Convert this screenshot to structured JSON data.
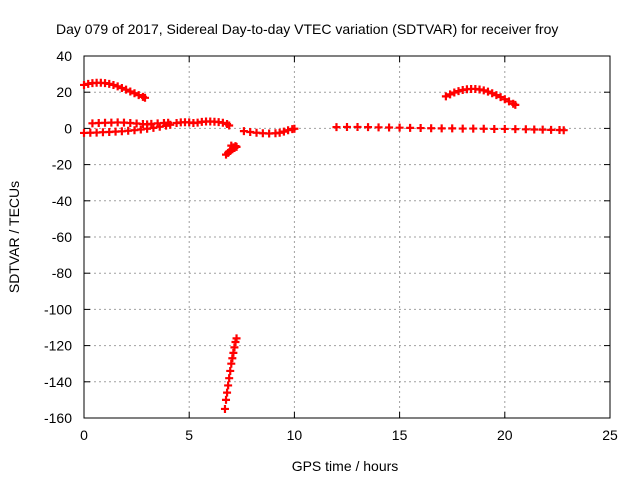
{
  "chart_data": {
    "type": "scatter",
    "title": "Day 079 of 2017, Sidereal Day-to-day VTEC variation (SDTVAR) for receiver froy",
    "xlabel": "GPS time / hours",
    "ylabel": "SDTVAR / TECUs",
    "xlim": [
      0,
      25
    ],
    "ylim": [
      -160,
      40
    ],
    "x_ticks": [
      "0",
      "5",
      "10",
      "15",
      "20",
      "25"
    ],
    "y_ticks": [
      "40",
      "20",
      "0",
      "-20",
      "-40",
      "-60",
      "-80",
      "-100",
      "-120",
      "-140",
      "-160"
    ],
    "grid": true,
    "marker": "plus",
    "series_color": "#ff0000",
    "series": [
      {
        "points": [
          [
            0.0,
            24.0
          ],
          [
            0.2,
            24.6
          ],
          [
            0.4,
            25.0
          ],
          [
            0.6,
            25.2
          ],
          [
            0.8,
            25.2
          ],
          [
            1.0,
            25.0
          ],
          [
            1.2,
            24.6
          ],
          [
            1.4,
            24.0
          ],
          [
            1.6,
            23.2
          ],
          [
            1.8,
            22.3
          ],
          [
            2.0,
            21.4
          ],
          [
            2.2,
            20.4
          ],
          [
            2.4,
            19.4
          ],
          [
            2.6,
            18.4
          ],
          [
            2.8,
            17.4
          ],
          [
            2.9,
            16.9
          ],
          [
            0.0,
            -2.5
          ],
          [
            0.3,
            -2.4
          ],
          [
            0.6,
            -2.3
          ],
          [
            0.9,
            -2.1
          ],
          [
            1.2,
            -2.0
          ],
          [
            1.5,
            -1.8
          ],
          [
            1.8,
            -1.6
          ],
          [
            2.1,
            -1.3
          ],
          [
            2.4,
            -1.0
          ],
          [
            2.7,
            -0.6
          ],
          [
            3.0,
            -0.2
          ],
          [
            3.3,
            0.3
          ],
          [
            3.6,
            0.9
          ],
          [
            3.9,
            1.5
          ],
          [
            4.1,
            2.0
          ],
          [
            0.4,
            2.8
          ],
          [
            0.7,
            3.0
          ],
          [
            1.0,
            3.1
          ],
          [
            1.3,
            3.2
          ],
          [
            1.6,
            3.3
          ],
          [
            1.9,
            3.2
          ],
          [
            2.2,
            3.0
          ],
          [
            2.5,
            2.7
          ],
          [
            2.8,
            2.4
          ],
          [
            3.0,
            2.2
          ],
          [
            3.2,
            2.5
          ],
          [
            3.5,
            2.8
          ],
          [
            3.8,
            3.0
          ],
          [
            4.0,
            3.1
          ],
          [
            4.4,
            3.0
          ],
          [
            4.6,
            3.3
          ],
          [
            4.8,
            3.4
          ],
          [
            5.0,
            3.3
          ],
          [
            5.2,
            3.0
          ],
          [
            5.4,
            3.2
          ],
          [
            5.6,
            3.6
          ],
          [
            5.8,
            3.8
          ],
          [
            6.0,
            3.8
          ],
          [
            6.2,
            3.7
          ],
          [
            6.4,
            3.5
          ],
          [
            6.6,
            3.1
          ],
          [
            6.8,
            2.4
          ],
          [
            6.9,
            1.6
          ],
          [
            6.75,
            -14.5
          ],
          [
            6.85,
            -13.5
          ],
          [
            6.95,
            -12.5
          ],
          [
            7.05,
            -11.5
          ],
          [
            7.15,
            -10.8
          ],
          [
            7.25,
            -10.2
          ],
          [
            7.0,
            -9.5
          ],
          [
            7.1,
            -10.5
          ],
          [
            7.2,
            -9.8
          ],
          [
            6.7,
            -155
          ],
          [
            6.75,
            -150
          ],
          [
            6.8,
            -146
          ],
          [
            6.85,
            -142
          ],
          [
            6.9,
            -138
          ],
          [
            6.95,
            -134
          ],
          [
            7.0,
            -130
          ],
          [
            7.05,
            -127
          ],
          [
            7.1,
            -124
          ],
          [
            7.15,
            -121
          ],
          [
            7.2,
            -118
          ],
          [
            7.25,
            -116
          ],
          [
            7.6,
            -1.5
          ],
          [
            7.9,
            -2.0
          ],
          [
            8.2,
            -2.4
          ],
          [
            8.5,
            -2.7
          ],
          [
            8.8,
            -2.8
          ],
          [
            9.1,
            -2.7
          ],
          [
            9.3,
            -2.4
          ],
          [
            9.5,
            -1.8
          ],
          [
            9.7,
            -1.0
          ],
          [
            9.9,
            -0.4
          ],
          [
            10.0,
            -0.2
          ],
          [
            12.0,
            0.7
          ],
          [
            12.5,
            0.8
          ],
          [
            13.0,
            0.8
          ],
          [
            13.5,
            0.7
          ],
          [
            14.0,
            0.6
          ],
          [
            14.5,
            0.5
          ],
          [
            15.0,
            0.4
          ],
          [
            15.5,
            0.3
          ],
          [
            16.0,
            0.2
          ],
          [
            16.5,
            0.1
          ],
          [
            17.0,
            0.0
          ],
          [
            17.5,
            0.0
          ],
          [
            18.0,
            -0.1
          ],
          [
            18.5,
            -0.1
          ],
          [
            19.0,
            -0.2
          ],
          [
            19.5,
            -0.3
          ],
          [
            20.0,
            -0.3
          ],
          [
            20.5,
            -0.4
          ],
          [
            17.2,
            17.7
          ],
          [
            17.4,
            18.8
          ],
          [
            17.6,
            19.8
          ],
          [
            17.8,
            20.6
          ],
          [
            18.0,
            21.2
          ],
          [
            18.2,
            21.6
          ],
          [
            18.4,
            21.8
          ],
          [
            18.6,
            21.8
          ],
          [
            18.8,
            21.5
          ],
          [
            19.0,
            21.0
          ],
          [
            19.2,
            20.3
          ],
          [
            19.4,
            19.4
          ],
          [
            19.6,
            18.4
          ],
          [
            19.8,
            17.3
          ],
          [
            20.0,
            16.1
          ],
          [
            20.2,
            14.9
          ],
          [
            20.4,
            13.6
          ],
          [
            20.5,
            13.0
          ],
          [
            21.0,
            -0.5
          ],
          [
            21.4,
            -0.6
          ],
          [
            21.8,
            -0.7
          ],
          [
            22.2,
            -0.8
          ],
          [
            22.6,
            -0.9
          ],
          [
            22.8,
            -1.0
          ]
        ]
      }
    ]
  }
}
